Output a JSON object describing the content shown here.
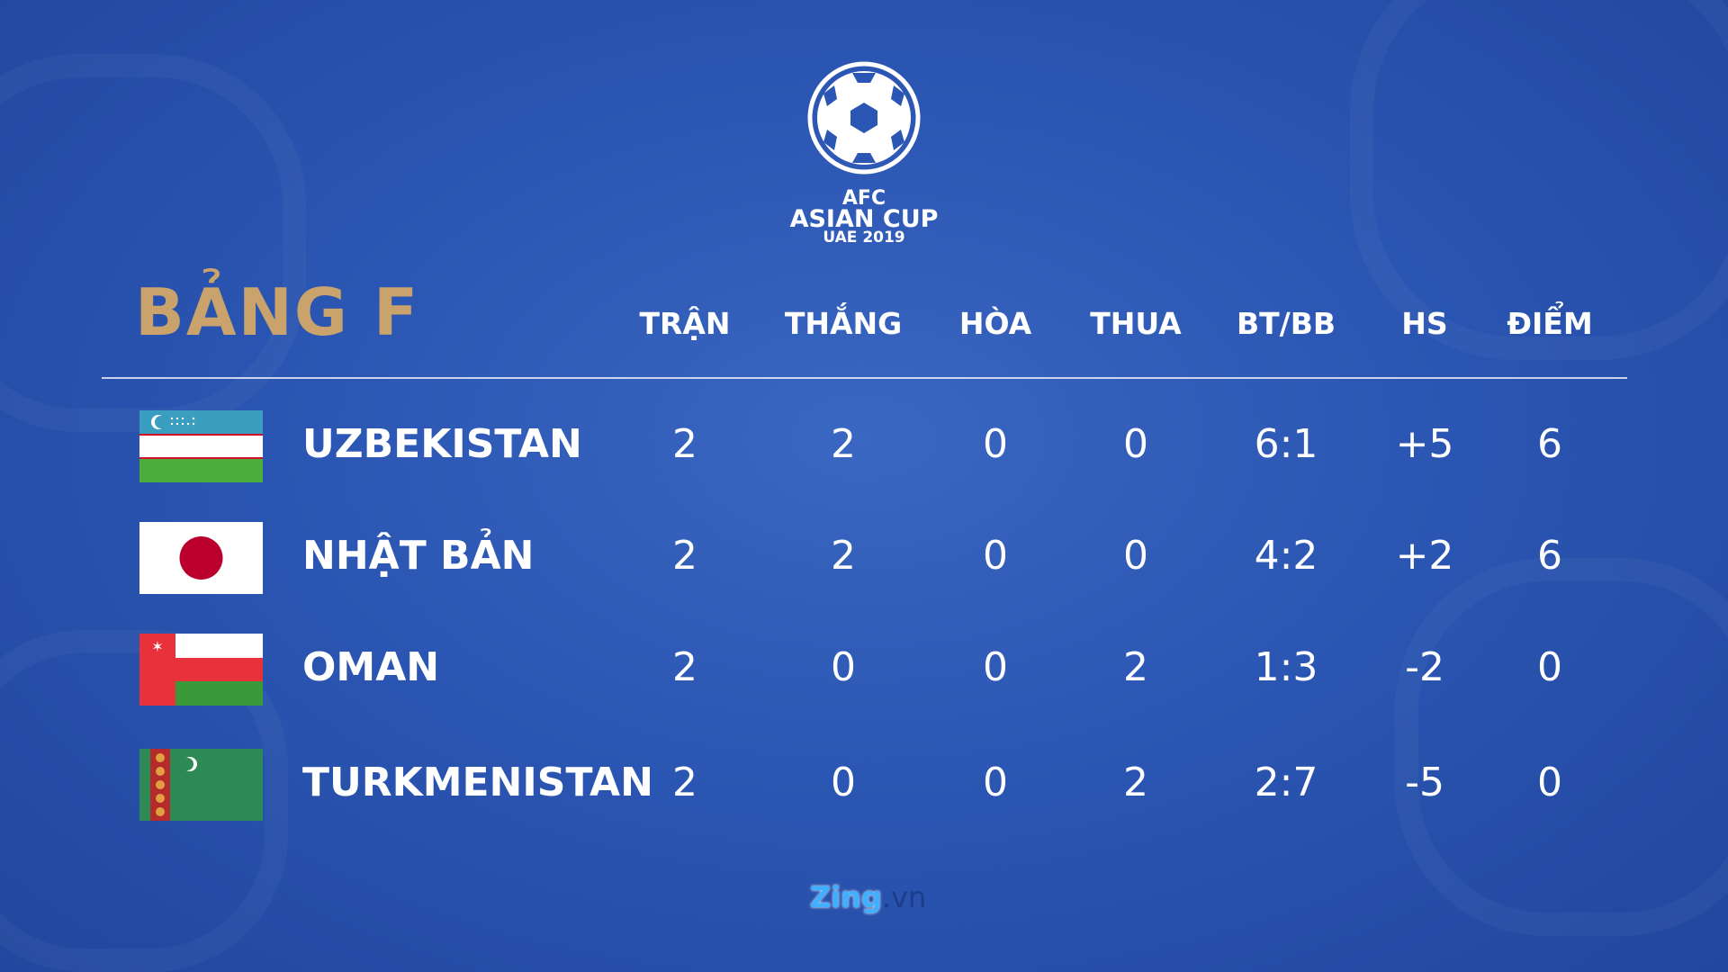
{
  "logo": {
    "line1": "AFC",
    "line2": "ASIAN CUP",
    "line3": "UAE 2019"
  },
  "title": "BẢNG F",
  "headers": [
    "TRẬN",
    "THẮNG",
    "HÒA",
    "THUA",
    "BT/BB",
    "HS",
    "ĐIỂM"
  ],
  "rows": [
    {
      "team": "UZBEKISTAN",
      "flag": "uzbekistan-flag",
      "values": [
        "2",
        "2",
        "0",
        "0",
        "6:1",
        "+5",
        "6"
      ]
    },
    {
      "team": "NHẬT BẢN",
      "flag": "japan-flag",
      "values": [
        "2",
        "2",
        "0",
        "0",
        "4:2",
        "+2",
        "6"
      ]
    },
    {
      "team": "OMAN",
      "flag": "oman-flag",
      "values": [
        "2",
        "0",
        "0",
        "2",
        "1:3",
        "-2",
        "0"
      ]
    },
    {
      "team": "TURKMENISTAN",
      "flag": "turkmenistan-flag",
      "values": [
        "2",
        "0",
        "0",
        "2",
        "2:7",
        "-5",
        "0"
      ]
    }
  ],
  "footer": {
    "brand": "Zing",
    ".vn": ".vn",
    "brand_suffix": ".vn"
  },
  "colors": {
    "background": "#2b56b3",
    "title": "#c9a36b"
  }
}
